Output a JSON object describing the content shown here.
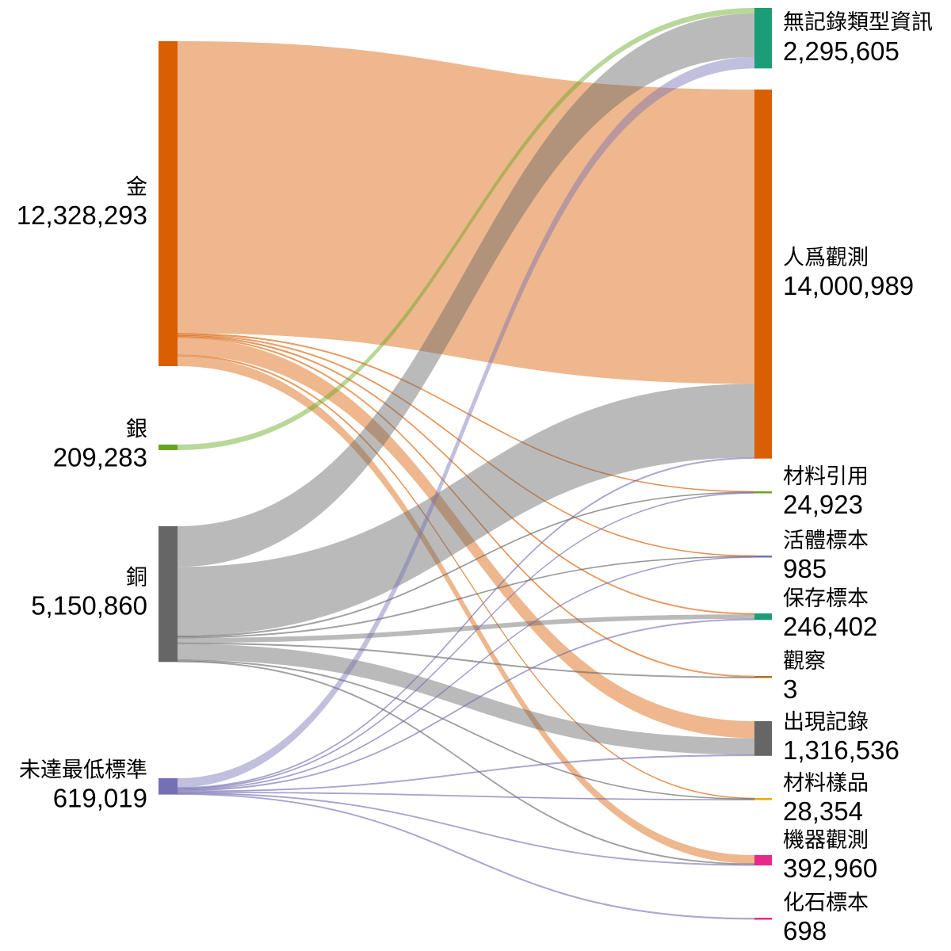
{
  "chart_data": {
    "type": "sankey",
    "title": "",
    "sources": [
      {
        "id": "gold",
        "name": "金",
        "value_label": "12,328,293",
        "value": 12328293,
        "color": "#d95f02"
      },
      {
        "id": "silver",
        "name": "銀",
        "value_label": "209,283",
        "value": 209283,
        "color": "#66a61e"
      },
      {
        "id": "copper",
        "name": "銅",
        "value_label": "5,150,860",
        "value": 5150860,
        "color": "#666666"
      },
      {
        "id": "below",
        "name": "未達最低標準",
        "value_label": "619,019",
        "value": 619019,
        "color": "#7570b3"
      }
    ],
    "targets": [
      {
        "id": "no_record_type",
        "name": "無記錄類型資訊",
        "value_label": "2,295,605",
        "value": 2295605,
        "color": "#1b9e77"
      },
      {
        "id": "human_obs",
        "name": "人爲觀測",
        "value_label": "14,000,989",
        "value": 14000989,
        "color": "#d95f02"
      },
      {
        "id": "material_cite",
        "name": "材料引用",
        "value_label": "24,923",
        "value": 24923,
        "color": "#66a61e"
      },
      {
        "id": "living_spec",
        "name": "活體標本",
        "value_label": "985",
        "value": 985,
        "color": "#7570b3"
      },
      {
        "id": "preserved_spec",
        "name": "保存標本",
        "value_label": "246,402",
        "value": 246402,
        "color": "#1b9e77"
      },
      {
        "id": "observation",
        "name": "觀察",
        "value_label": "3",
        "value": 3,
        "color": "#a6761d"
      },
      {
        "id": "occurrence",
        "name": "出現記錄",
        "value_label": "1,316,536",
        "value": 1316536,
        "color": "#666666"
      },
      {
        "id": "material_sample",
        "name": "材料樣品",
        "value_label": "28,354",
        "value": 28354,
        "color": "#e6ab02"
      },
      {
        "id": "machine_obs",
        "name": "機器觀測",
        "value_label": "392,960",
        "value": 392960,
        "color": "#e7298a"
      },
      {
        "id": "fossil_spec",
        "name": "化石標本",
        "value_label": "698",
        "value": 698,
        "color": "#e7298a"
      }
    ],
    "links": [
      {
        "source": "gold",
        "target": "human_obs",
        "value": 11200000
      },
      {
        "source": "gold",
        "target": "material_cite",
        "value": 15000
      },
      {
        "source": "gold",
        "target": "living_spec",
        "value": 500
      },
      {
        "source": "gold",
        "target": "preserved_spec",
        "value": 30000
      },
      {
        "source": "gold",
        "target": "observation",
        "value": 2
      },
      {
        "source": "gold",
        "target": "occurrence",
        "value": 660000
      },
      {
        "source": "gold",
        "target": "material_sample",
        "value": 20000
      },
      {
        "source": "gold",
        "target": "machine_obs",
        "value": 392000
      },
      {
        "source": "silver",
        "target": "no_record_type",
        "value": 209283
      },
      {
        "source": "copper",
        "target": "no_record_type",
        "value": 1650000
      },
      {
        "source": "copper",
        "target": "human_obs",
        "value": 2800000
      },
      {
        "source": "copper",
        "target": "material_cite",
        "value": 5000
      },
      {
        "source": "copper",
        "target": "living_spec",
        "value": 200
      },
      {
        "source": "copper",
        "target": "preserved_spec",
        "value": 200000
      },
      {
        "source": "copper",
        "target": "observation",
        "value": 1
      },
      {
        "source": "copper",
        "target": "occurrence",
        "value": 650000
      },
      {
        "source": "copper",
        "target": "material_sample",
        "value": 5000
      },
      {
        "source": "copper",
        "target": "machine_obs",
        "value": 500
      },
      {
        "source": "below",
        "target": "no_record_type",
        "value": 436322
      },
      {
        "source": "below",
        "target": "human_obs",
        "value": 989
      },
      {
        "source": "below",
        "target": "material_cite",
        "value": 4923
      },
      {
        "source": "below",
        "target": "living_spec",
        "value": 285
      },
      {
        "source": "below",
        "target": "preserved_spec",
        "value": 16402
      },
      {
        "source": "below",
        "target": "occurrence",
        "value": 6536
      },
      {
        "source": "below",
        "target": "material_sample",
        "value": 3354
      },
      {
        "source": "below",
        "target": "machine_obs",
        "value": 460
      },
      {
        "source": "below",
        "target": "fossil_spec",
        "value": 698
      }
    ]
  }
}
